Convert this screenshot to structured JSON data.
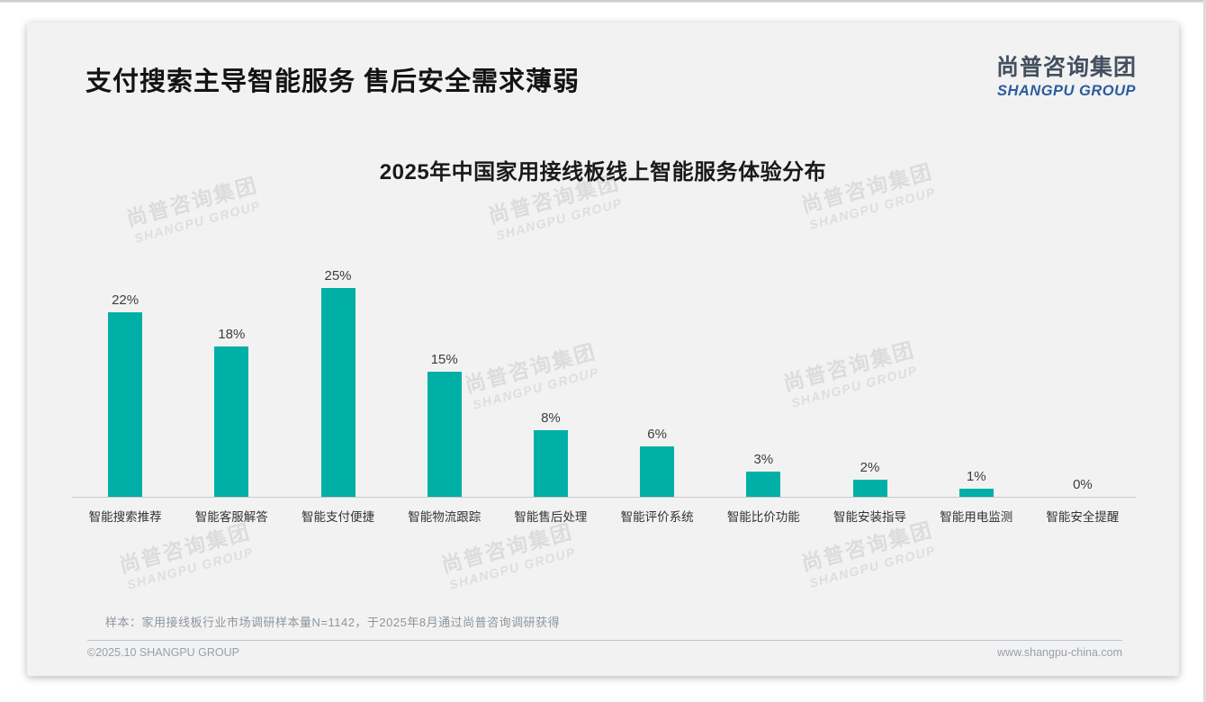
{
  "page": {
    "title": "支付搜索主导智能服务 售后安全需求薄弱",
    "logo": {
      "cn": "尚普咨询集团",
      "en": "SHANGPU GROUP"
    },
    "watermark": {
      "cn": "尚普咨询集团",
      "en": "SHANGPU GROUP"
    },
    "sample_note": "样本：家用接线板行业市场调研样本量N=1142，于2025年8月通过尚普咨询调研获得",
    "footer_left": "©2025.10 SHANGPU GROUP",
    "footer_right": "www.shangpu-china.com"
  },
  "chart_data": {
    "type": "bar",
    "title": "2025年中国家用接线板线上智能服务体验分布",
    "categories": [
      "智能搜索推荐",
      "智能客服解答",
      "智能支付便捷",
      "智能物流跟踪",
      "智能售后处理",
      "智能评价系统",
      "智能比价功能",
      "智能安装指导",
      "智能用电监测",
      "智能安全提醒"
    ],
    "values": [
      22,
      18,
      25,
      15,
      8,
      6,
      3,
      2,
      1,
      0
    ],
    "value_labels": [
      "22%",
      "18%",
      "25%",
      "15%",
      "8%",
      "6%",
      "3%",
      "2%",
      "1%",
      "0%"
    ],
    "unit": "%",
    "xlabel": "",
    "ylabel": "",
    "ylim": [
      0,
      25
    ],
    "grid": false,
    "legend": "none",
    "bar_color": "#00AFA6",
    "axis_color": "#c9c9c9"
  }
}
